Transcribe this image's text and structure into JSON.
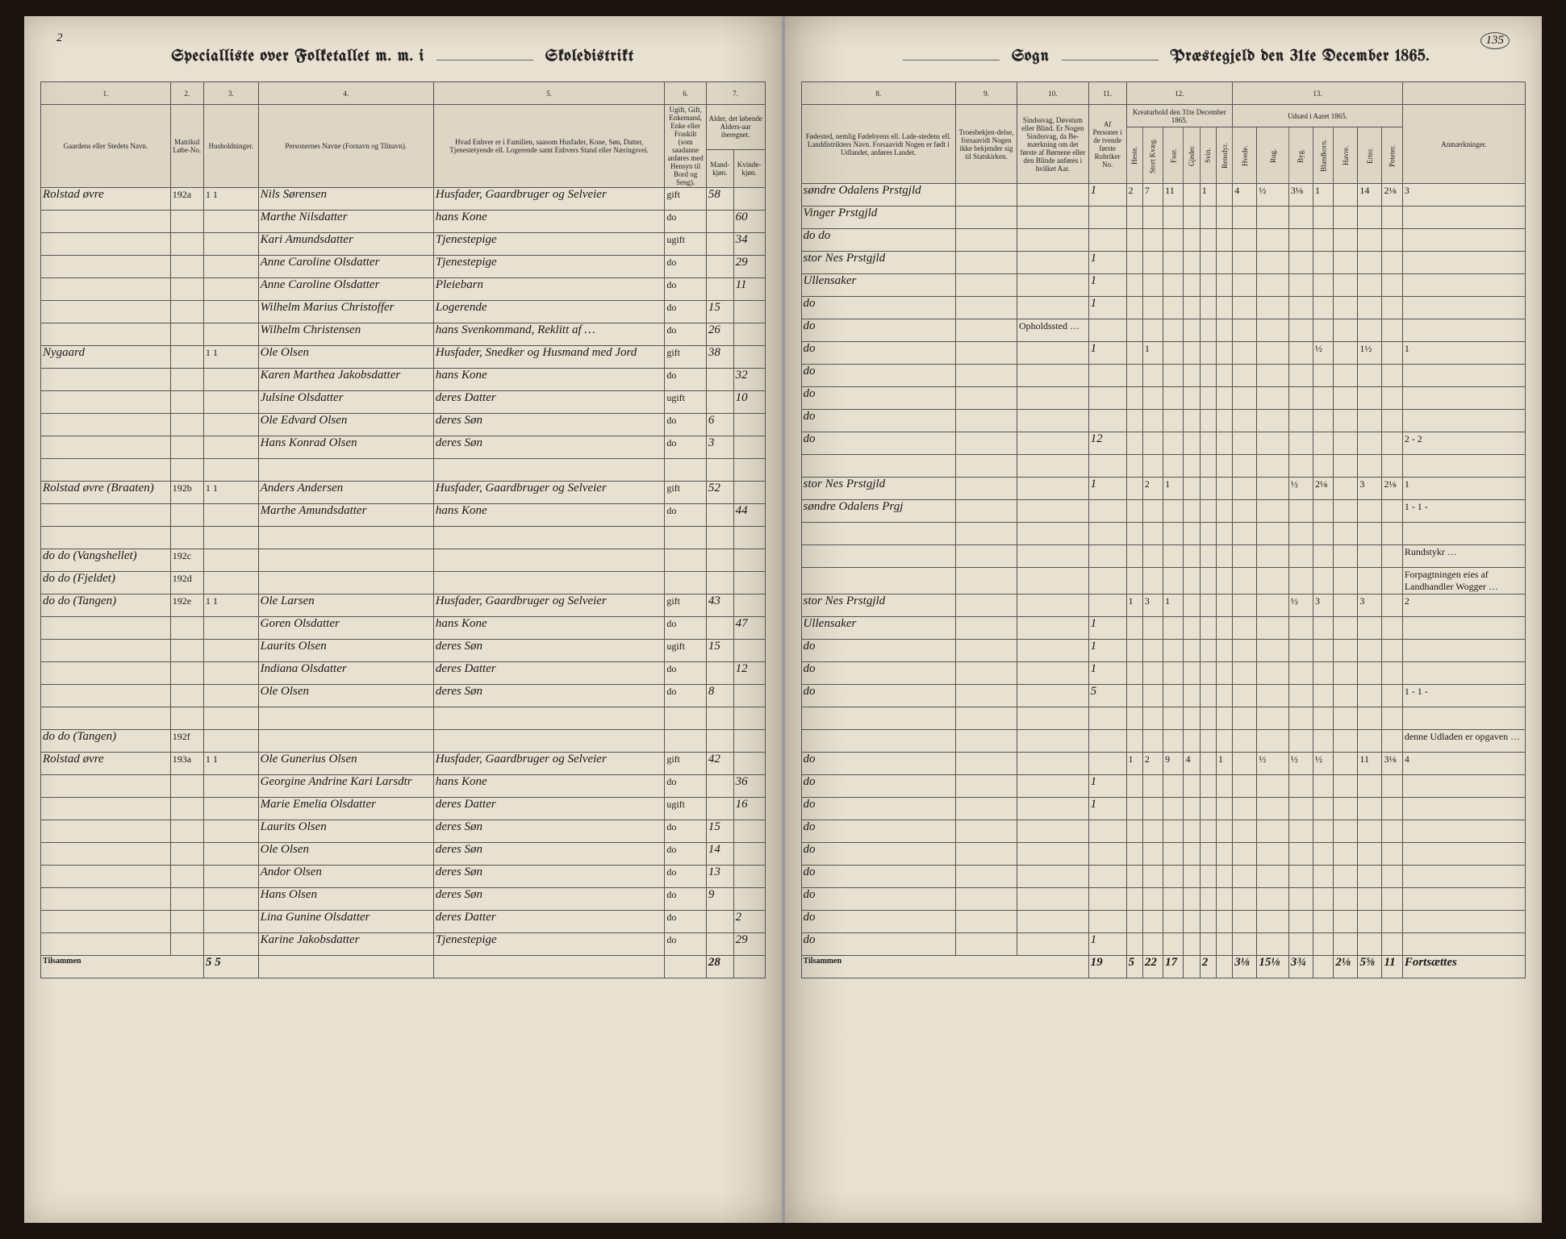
{
  "doc": {
    "left_page_num": "2",
    "right_page_num": "135",
    "header_left_a": "Specialliste over Folketallet m. m. i",
    "header_left_b": "Skoledistrikt",
    "header_right_a": "Sogn",
    "header_right_b": "Præstegjeld den 31te December 1865.",
    "footer_left_label": "Tilsammen",
    "footer_right_label": "Tilsammen"
  },
  "left_cols": {
    "c1": "1.",
    "c2": "2.",
    "c3": "3.",
    "c4": "4.",
    "c5": "5.",
    "c6": "6.",
    "c7": "7.",
    "h1": "Gaardens eller Stedets Navn.",
    "h2a": "Matrikul Løbe-No.",
    "h2b": "Husholdninger.",
    "h4": "Personernes Navne (Fornavn og Tilnavn).",
    "h5": "Hvad Enhver er i Familien, saasom Husfader, Kone, Søn, Datter, Tjenestetyende ell. Logerende samt Enhvers Stand eller Næringsvei.",
    "h6": "Ugift, Gift, Enkemand, Enke eller Fraskilt (som saadanne anføres med Hensyn til Bord og Seng).",
    "h7": "Alder, det løbende Alders-aar iberegnet.",
    "h7a": "Mand-kjøn.",
    "h7b": "Kvinde-kjøn."
  },
  "right_cols": {
    "c8": "8.",
    "c9": "9.",
    "c10": "10.",
    "c11": "11.",
    "c12": "12.",
    "c13": "13.",
    "h8": "Fødested, nemlig Fødebyens ell. Lade-stedens ell. Landdistrikters Navn. Forsaavidt Nogen er født i Udlandet, anføres Landet.",
    "h9": "Troesbekjen-delse, forsaavidt Nogen ikke bekjender sig til Statskirken.",
    "h10": "Sindssvag, Døvstum eller Blind. Er Nogen Sindssvag, da Be-mærkning om det første af Børnene eller den Blinde anføres i hvilket Aar.",
    "h11": "Af Personer i de tvende første Rubriker No.",
    "h12": "Kreaturhold den 31te December 1865.",
    "h13": "Udsæd i Aaret 1865.",
    "h14": "Anmærkninger.",
    "h12_sub": [
      "Heste.",
      "Stort Kvæg.",
      "Faar.",
      "Gjeder.",
      "Svin.",
      "Rensdyr."
    ],
    "h13_sub": [
      "Hvede.",
      "Rug.",
      "Byg.",
      "Blandkorn.",
      "Havre.",
      "Erter.",
      "Poteter."
    ]
  },
  "rows": [
    {
      "farm": "Rolstad øvre",
      "mat": "192a",
      "hh": "1 1",
      "name": "Nils Sørensen",
      "rel": "Husfader, Gaardbruger og Selveier",
      "civ": "gift",
      "m": "58",
      "f": "",
      "birth": "søndre Odalens Prstgjld",
      "note9": "",
      "note10": "",
      "p": "1",
      "k": [
        "2",
        "7",
        "11",
        "",
        "1",
        "",
        "4",
        "½",
        "3⅛",
        "1",
        "",
        "14",
        "2⅛",
        "3"
      ]
    },
    {
      "farm": "",
      "mat": "",
      "hh": "",
      "name": "Marthe Nilsdatter",
      "rel": "hans Kone",
      "civ": "do",
      "m": "",
      "f": "60",
      "birth": "Vinger Prstgjld",
      "note9": "",
      "note10": "",
      "p": "",
      "k": [
        "",
        "",
        "",
        "",
        "",
        "",
        "",
        "",
        "",
        "",
        "",
        "",
        "",
        ""
      ]
    },
    {
      "farm": "",
      "mat": "",
      "hh": "",
      "name": "Kari Amundsdatter",
      "rel": "Tjenestepige",
      "civ": "ugift",
      "m": "",
      "f": "34",
      "birth": "do   do",
      "note9": "",
      "note10": "",
      "p": "",
      "k": [
        "",
        "",
        "",
        "",
        "",
        "",
        "",
        "",
        "",
        "",
        "",
        "",
        "",
        ""
      ]
    },
    {
      "farm": "",
      "mat": "",
      "hh": "",
      "name": "Anne Caroline Olsdatter",
      "rel": "Tjenestepige",
      "civ": "do",
      "m": "",
      "f": "29",
      "birth": "stor Nes Prstgjld",
      "note9": "",
      "note10": "",
      "p": "1",
      "k": [
        "",
        "",
        "",
        "",
        "",
        "",
        "",
        "",
        "",
        "",
        "",
        "",
        "",
        ""
      ]
    },
    {
      "farm": "",
      "mat": "",
      "hh": "",
      "name": "Anne Caroline Olsdatter",
      "rel": "Pleiebarn",
      "civ": "do",
      "m": "",
      "f": "11",
      "birth": "Ullensaker",
      "note9": "",
      "note10": "",
      "p": "1",
      "k": [
        "",
        "",
        "",
        "",
        "",
        "",
        "",
        "",
        "",
        "",
        "",
        "",
        "",
        ""
      ]
    },
    {
      "farm": "",
      "mat": "",
      "hh": "",
      "name": "Wilhelm Marius Christoffer",
      "rel": "Logerende",
      "civ": "do",
      "m": "15",
      "f": "",
      "birth": "do",
      "note9": "",
      "note10": "",
      "p": "1",
      "k": [
        "",
        "",
        "",
        "",
        "",
        "",
        "",
        "",
        "",
        "",
        "",
        "",
        "",
        ""
      ]
    },
    {
      "farm": "",
      "mat": "",
      "hh": "",
      "name": "Wilhelm Christensen",
      "rel": "hans Svenkommand, Reklitt af …",
      "civ": "do",
      "m": "26",
      "f": "",
      "birth": "do",
      "note9": "",
      "note10": "Opholdssted …",
      "p": "",
      "k": [
        "",
        "",
        "",
        "",
        "",
        "",
        "",
        "",
        "",
        "",
        "",
        "",
        "",
        ""
      ]
    },
    {
      "farm": "Nygaard",
      "mat": "",
      "hh": "1 1",
      "name": "Ole Olsen",
      "rel": "Husfader, Snedker og Husmand med Jord",
      "civ": "gift",
      "m": "38",
      "f": "",
      "birth": "do",
      "note9": "",
      "note10": "",
      "p": "1",
      "k": [
        "",
        "1",
        "",
        "",
        "",
        "",
        "",
        "",
        "",
        "½",
        "",
        "1½",
        "",
        "1"
      ]
    },
    {
      "farm": "",
      "mat": "",
      "hh": "",
      "name": "Karen Marthea Jakobsdatter",
      "rel": "hans Kone",
      "civ": "do",
      "m": "",
      "f": "32",
      "birth": "do",
      "note9": "",
      "note10": "",
      "p": "",
      "k": [
        "",
        "",
        "",
        "",
        "",
        "",
        "",
        "",
        "",
        "",
        "",
        "",
        "",
        ""
      ]
    },
    {
      "farm": "",
      "mat": "",
      "hh": "",
      "name": "Julsine Olsdatter",
      "rel": "deres Datter",
      "civ": "ugift",
      "m": "",
      "f": "10",
      "birth": "do",
      "note9": "",
      "note10": "",
      "p": "",
      "k": [
        "",
        "",
        "",
        "",
        "",
        "",
        "",
        "",
        "",
        "",
        "",
        "",
        "",
        ""
      ]
    },
    {
      "farm": "",
      "mat": "",
      "hh": "",
      "name": "Ole Edvard Olsen",
      "rel": "deres Søn",
      "civ": "do",
      "m": "6",
      "f": "",
      "birth": "do",
      "note9": "",
      "note10": "",
      "p": "",
      "k": [
        "",
        "",
        "",
        "",
        "",
        "",
        "",
        "",
        "",
        "",
        "",
        "",
        "",
        ""
      ]
    },
    {
      "farm": "",
      "mat": "",
      "hh": "",
      "name": "Hans Konrad Olsen",
      "rel": "deres Søn",
      "civ": "do",
      "m": "3",
      "f": "",
      "birth": "do",
      "note9": "",
      "note10": "",
      "p": "12",
      "k": [
        "",
        "",
        "",
        "",
        "",
        "",
        "",
        "",
        "",
        "",
        "",
        "",
        "",
        "2 - 2"
      ]
    },
    {
      "spacer": true
    },
    {
      "farm": "Rolstad øvre (Braaten)",
      "mat": "192b",
      "hh": "1 1",
      "name": "Anders Andersen",
      "rel": "Husfader, Gaardbruger og Selveier",
      "civ": "gift",
      "m": "52",
      "f": "",
      "birth": "stor Nes Prstgjld",
      "note9": "",
      "note10": "",
      "p": "1",
      "k": [
        "",
        "2",
        "1",
        "",
        "",
        "",
        "",
        "",
        "½",
        "2⅛",
        "",
        "3",
        "2⅛",
        "1"
      ]
    },
    {
      "farm": "",
      "mat": "",
      "hh": "",
      "name": "Marthe Amundsdatter",
      "rel": "hans Kone",
      "civ": "do",
      "m": "",
      "f": "44",
      "birth": "søndre Odalens Prgj",
      "note9": "",
      "note10": "",
      "p": "",
      "k": [
        "",
        "",
        "",
        "",
        "",
        "",
        "",
        "",
        "",
        "",
        "",
        "",
        "",
        "1 - 1 -"
      ]
    },
    {
      "spacer": true
    },
    {
      "farm": "do do (Vangshellet)",
      "mat": "192c",
      "hh": "",
      "name": "",
      "rel": "",
      "civ": "",
      "m": "",
      "f": "",
      "birth": "",
      "note9": "",
      "note10": "",
      "p": "",
      "k": [
        "",
        "",
        "",
        "",
        "",
        "",
        "",
        "",
        "",
        "",
        "",
        "",
        "",
        "Rundstykr …"
      ]
    },
    {
      "farm": "do do (Fjeldet)",
      "mat": "192d",
      "hh": "",
      "name": "",
      "rel": "",
      "civ": "",
      "m": "",
      "f": "",
      "birth": "",
      "note9": "",
      "note10": "",
      "p": "",
      "k": [
        "",
        "",
        "",
        "",
        "",
        "",
        "",
        "",
        "",
        "",
        "",
        "",
        "",
        "Forpagtningen eies af Landhandler Wogger …"
      ]
    },
    {
      "farm": "do do (Tangen)",
      "mat": "192e",
      "hh": "1 1",
      "name": "Ole Larsen",
      "rel": "Husfader, Gaardbruger og Selveier",
      "civ": "gift",
      "m": "43",
      "f": "",
      "birth": "stor Nes Prstgjld",
      "note9": "",
      "note10": "",
      "p": "",
      "k": [
        "1",
        "3",
        "1",
        "",
        "",
        "",
        "",
        "",
        "½",
        "3",
        "",
        "3",
        "",
        "2"
      ]
    },
    {
      "farm": "",
      "mat": "",
      "hh": "",
      "name": "Goren Olsdatter",
      "rel": "hans Kone",
      "civ": "do",
      "m": "",
      "f": "47",
      "birth": "Ullensaker",
      "note9": "",
      "note10": "",
      "p": "1",
      "k": [
        "",
        "",
        "",
        "",
        "",
        "",
        "",
        "",
        "",
        "",
        "",
        "",
        "",
        ""
      ]
    },
    {
      "farm": "",
      "mat": "",
      "hh": "",
      "name": "Laurits Olsen",
      "rel": "deres Søn",
      "civ": "ugift",
      "m": "15",
      "f": "",
      "birth": "do",
      "note9": "",
      "note10": "",
      "p": "1",
      "k": [
        "",
        "",
        "",
        "",
        "",
        "",
        "",
        "",
        "",
        "",
        "",
        "",
        "",
        ""
      ]
    },
    {
      "farm": "",
      "mat": "",
      "hh": "",
      "name": "Indiana Olsdatter",
      "rel": "deres Datter",
      "civ": "do",
      "m": "",
      "f": "12",
      "birth": "do",
      "note9": "",
      "note10": "",
      "p": "1",
      "k": [
        "",
        "",
        "",
        "",
        "",
        "",
        "",
        "",
        "",
        "",
        "",
        "",
        "",
        ""
      ]
    },
    {
      "farm": "",
      "mat": "",
      "hh": "",
      "name": "Ole Olsen",
      "rel": "deres Søn",
      "civ": "do",
      "m": "8",
      "f": "",
      "birth": "do",
      "note9": "",
      "note10": "",
      "p": "5",
      "k": [
        "",
        "",
        "",
        "",
        "",
        "",
        "",
        "",
        "",
        "",
        "",
        "",
        "",
        "1 - 1 -"
      ]
    },
    {
      "spacer": true
    },
    {
      "farm": "do do (Tangen)",
      "mat": "192f",
      "hh": "",
      "name": "",
      "rel": "",
      "civ": "",
      "m": "",
      "f": "",
      "birth": "",
      "note9": "",
      "note10": "",
      "p": "",
      "k": [
        "",
        "",
        "",
        "",
        "",
        "",
        "",
        "",
        "",
        "",
        "",
        "",
        "",
        "denne Udladen er opgaven …"
      ]
    },
    {
      "farm": "Rolstad øvre",
      "mat": "193a",
      "hh": "1 1",
      "name": "Ole Gunerius Olsen",
      "rel": "Husfader, Gaardbruger og Selveier",
      "civ": "gift",
      "m": "42",
      "f": "",
      "birth": "do",
      "note9": "",
      "note10": "",
      "p": "",
      "k": [
        "1",
        "2",
        "9",
        "4",
        "",
        "1",
        "",
        "½",
        "½",
        "½",
        "",
        "11",
        "3⅛",
        "4"
      ]
    },
    {
      "farm": "",
      "mat": "",
      "hh": "",
      "name": "Georgine Andrine Kari Larsdtr",
      "rel": "hans Kone",
      "civ": "do",
      "m": "",
      "f": "36",
      "birth": "do",
      "note9": "",
      "note10": "",
      "p": "1",
      "k": [
        "",
        "",
        "",
        "",
        "",
        "",
        "",
        "",
        "",
        "",
        "",
        "",
        "",
        ""
      ]
    },
    {
      "farm": "",
      "mat": "",
      "hh": "",
      "name": "Marie Emelia Olsdatter",
      "rel": "deres Datter",
      "civ": "ugift",
      "m": "",
      "f": "16",
      "birth": "do",
      "note9": "",
      "note10": "",
      "p": "1",
      "k": [
        "",
        "",
        "",
        "",
        "",
        "",
        "",
        "",
        "",
        "",
        "",
        "",
        "",
        ""
      ]
    },
    {
      "farm": "",
      "mat": "",
      "hh": "",
      "name": "Laurits Olsen",
      "rel": "deres Søn",
      "civ": "do",
      "m": "15",
      "f": "",
      "birth": "do",
      "note9": "",
      "note10": "",
      "p": "",
      "k": [
        "",
        "",
        "",
        "",
        "",
        "",
        "",
        "",
        "",
        "",
        "",
        "",
        "",
        ""
      ]
    },
    {
      "farm": "",
      "mat": "",
      "hh": "",
      "name": "Ole Olsen",
      "rel": "deres Søn",
      "civ": "do",
      "m": "14",
      "f": "",
      "birth": "do",
      "note9": "",
      "note10": "",
      "p": "",
      "k": [
        "",
        "",
        "",
        "",
        "",
        "",
        "",
        "",
        "",
        "",
        "",
        "",
        "",
        ""
      ]
    },
    {
      "farm": "",
      "mat": "",
      "hh": "",
      "name": "Andor Olsen",
      "rel": "deres Søn",
      "civ": "do",
      "m": "13",
      "f": "",
      "birth": "do",
      "note9": "",
      "note10": "",
      "p": "",
      "k": [
        "",
        "",
        "",
        "",
        "",
        "",
        "",
        "",
        "",
        "",
        "",
        "",
        "",
        ""
      ]
    },
    {
      "farm": "",
      "mat": "",
      "hh": "",
      "name": "Hans Olsen",
      "rel": "deres Søn",
      "civ": "do",
      "m": "9",
      "f": "",
      "birth": "do",
      "note9": "",
      "note10": "",
      "p": "",
      "k": [
        "",
        "",
        "",
        "",
        "",
        "",
        "",
        "",
        "",
        "",
        "",
        "",
        "",
        ""
      ]
    },
    {
      "farm": "",
      "mat": "",
      "hh": "",
      "name": "Lina Gunine Olsdatter",
      "rel": "deres Datter",
      "civ": "do",
      "m": "",
      "f": "2",
      "birth": "do",
      "note9": "",
      "note10": "",
      "p": "",
      "k": [
        "",
        "",
        "",
        "",
        "",
        "",
        "",
        "",
        "",
        "",
        "",
        "",
        "",
        ""
      ]
    },
    {
      "farm": "",
      "mat": "",
      "hh": "",
      "name": "Karine Jakobsdatter",
      "rel": "Tjenestepige",
      "civ": "do",
      "m": "",
      "f": "29",
      "birth": "do",
      "note9": "",
      "note10": "",
      "p": "1",
      "k": [
        "",
        "",
        "",
        "",
        "",
        "",
        "",
        "",
        "",
        "",
        "",
        "",
        "",
        ""
      ]
    }
  ],
  "totals_left": {
    "hh": "5 5",
    "m_sum": "28"
  },
  "totals_right": {
    "p": "19",
    "k": [
      "5",
      "22",
      "17",
      "",
      "2",
      "",
      "3⅛",
      "15⅛",
      "3¾",
      "",
      "2⅛",
      "5⅝",
      "11"
    ],
    "note": "Fortsættes"
  }
}
